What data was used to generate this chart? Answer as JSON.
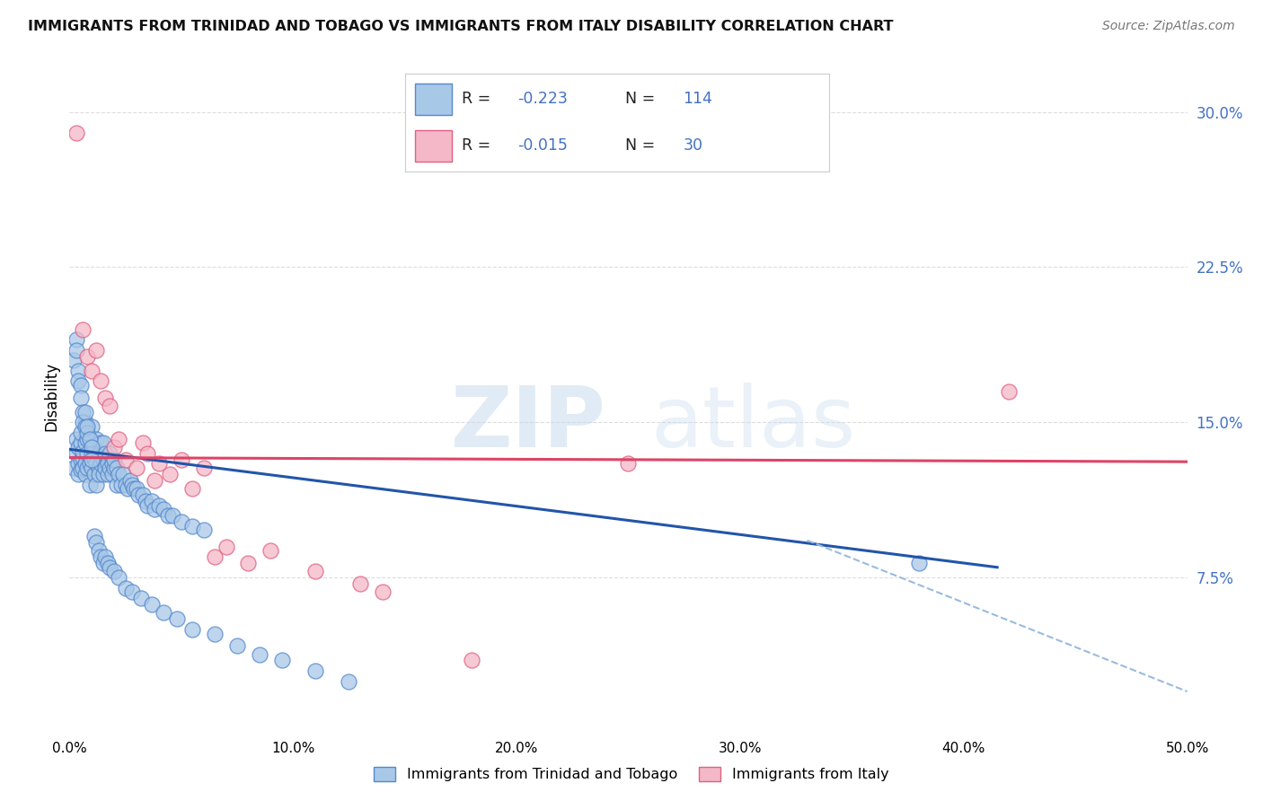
{
  "title": "IMMIGRANTS FROM TRINIDAD AND TOBAGO VS IMMIGRANTS FROM ITALY DISABILITY CORRELATION CHART",
  "source": "Source: ZipAtlas.com",
  "ylabel": "Disability",
  "ytick_vals": [
    0.075,
    0.15,
    0.225,
    0.3
  ],
  "ytick_labels": [
    "7.5%",
    "15.0%",
    "22.5%",
    "30.0%"
  ],
  "xlim": [
    0.0,
    0.5
  ],
  "ylim": [
    0.0,
    0.325
  ],
  "legend_blue_R": "-0.223",
  "legend_blue_N": "114",
  "legend_pink_R": "-0.015",
  "legend_pink_N": "30",
  "blue_color": "#A8C8E8",
  "pink_color": "#F4B8C8",
  "blue_edge_color": "#5588CC",
  "pink_edge_color": "#E06080",
  "trendline_blue_color": "#2255AA",
  "trendline_pink_color": "#DD4466",
  "trendline_dashed_color": "#99BBDD",
  "watermark_zip": "ZIP",
  "watermark_atlas": "atlas",
  "background_color": "#FFFFFF",
  "grid_color": "#DDDDDD",
  "blue_scatter_x": [
    0.002,
    0.003,
    0.003,
    0.004,
    0.004,
    0.004,
    0.005,
    0.005,
    0.005,
    0.005,
    0.006,
    0.006,
    0.006,
    0.007,
    0.007,
    0.007,
    0.007,
    0.008,
    0.008,
    0.008,
    0.009,
    0.009,
    0.01,
    0.01,
    0.01,
    0.01,
    0.011,
    0.011,
    0.011,
    0.012,
    0.012,
    0.012,
    0.013,
    0.013,
    0.013,
    0.014,
    0.014,
    0.015,
    0.015,
    0.015,
    0.016,
    0.016,
    0.017,
    0.017,
    0.018,
    0.018,
    0.019,
    0.019,
    0.02,
    0.02,
    0.021,
    0.021,
    0.022,
    0.023,
    0.024,
    0.025,
    0.026,
    0.027,
    0.028,
    0.029,
    0.03,
    0.031,
    0.033,
    0.034,
    0.035,
    0.037,
    0.038,
    0.04,
    0.042,
    0.044,
    0.046,
    0.05,
    0.055,
    0.06,
    0.002,
    0.003,
    0.003,
    0.004,
    0.004,
    0.005,
    0.005,
    0.006,
    0.006,
    0.007,
    0.007,
    0.008,
    0.008,
    0.009,
    0.01,
    0.01,
    0.011,
    0.012,
    0.013,
    0.014,
    0.015,
    0.016,
    0.017,
    0.018,
    0.02,
    0.022,
    0.025,
    0.028,
    0.032,
    0.037,
    0.042,
    0.048,
    0.055,
    0.065,
    0.075,
    0.085,
    0.095,
    0.11,
    0.125,
    0.38
  ],
  "blue_scatter_y": [
    0.128,
    0.135,
    0.142,
    0.13,
    0.125,
    0.138,
    0.132,
    0.127,
    0.14,
    0.145,
    0.133,
    0.128,
    0.136,
    0.13,
    0.125,
    0.14,
    0.15,
    0.135,
    0.128,
    0.142,
    0.13,
    0.12,
    0.135,
    0.128,
    0.14,
    0.148,
    0.133,
    0.125,
    0.138,
    0.13,
    0.12,
    0.142,
    0.128,
    0.135,
    0.125,
    0.13,
    0.14,
    0.125,
    0.132,
    0.14,
    0.128,
    0.135,
    0.13,
    0.125,
    0.128,
    0.135,
    0.13,
    0.125,
    0.128,
    0.132,
    0.12,
    0.128,
    0.125,
    0.12,
    0.125,
    0.12,
    0.118,
    0.122,
    0.12,
    0.118,
    0.118,
    0.115,
    0.115,
    0.112,
    0.11,
    0.112,
    0.108,
    0.11,
    0.108,
    0.105,
    0.105,
    0.102,
    0.1,
    0.098,
    0.18,
    0.19,
    0.185,
    0.175,
    0.17,
    0.168,
    0.162,
    0.155,
    0.15,
    0.148,
    0.155,
    0.145,
    0.148,
    0.142,
    0.138,
    0.132,
    0.095,
    0.092,
    0.088,
    0.085,
    0.082,
    0.085,
    0.082,
    0.08,
    0.078,
    0.075,
    0.07,
    0.068,
    0.065,
    0.062,
    0.058,
    0.055,
    0.05,
    0.048,
    0.042,
    0.038,
    0.035,
    0.03,
    0.025,
    0.082
  ],
  "pink_scatter_x": [
    0.003,
    0.006,
    0.008,
    0.01,
    0.012,
    0.014,
    0.016,
    0.018,
    0.02,
    0.022,
    0.025,
    0.03,
    0.033,
    0.035,
    0.038,
    0.04,
    0.045,
    0.05,
    0.055,
    0.06,
    0.065,
    0.07,
    0.08,
    0.09,
    0.11,
    0.13,
    0.14,
    0.25,
    0.42,
    0.18
  ],
  "pink_scatter_y": [
    0.29,
    0.195,
    0.182,
    0.175,
    0.185,
    0.17,
    0.162,
    0.158,
    0.138,
    0.142,
    0.132,
    0.128,
    0.14,
    0.135,
    0.122,
    0.13,
    0.125,
    0.132,
    0.118,
    0.128,
    0.085,
    0.09,
    0.082,
    0.088,
    0.078,
    0.072,
    0.068,
    0.13,
    0.165,
    0.035
  ],
  "trendline_blue_x0": 0.0,
  "trendline_blue_y0": 0.137,
  "trendline_blue_x1": 0.415,
  "trendline_blue_y1": 0.08,
  "trendline_pink_x0": 0.0,
  "trendline_pink_y0": 0.133,
  "trendline_pink_x1": 0.5,
  "trendline_pink_y1": 0.131,
  "trendline_dashed_x0": 0.33,
  "trendline_dashed_y0": 0.093,
  "trendline_dashed_x1": 0.5,
  "trendline_dashed_y1": 0.02
}
